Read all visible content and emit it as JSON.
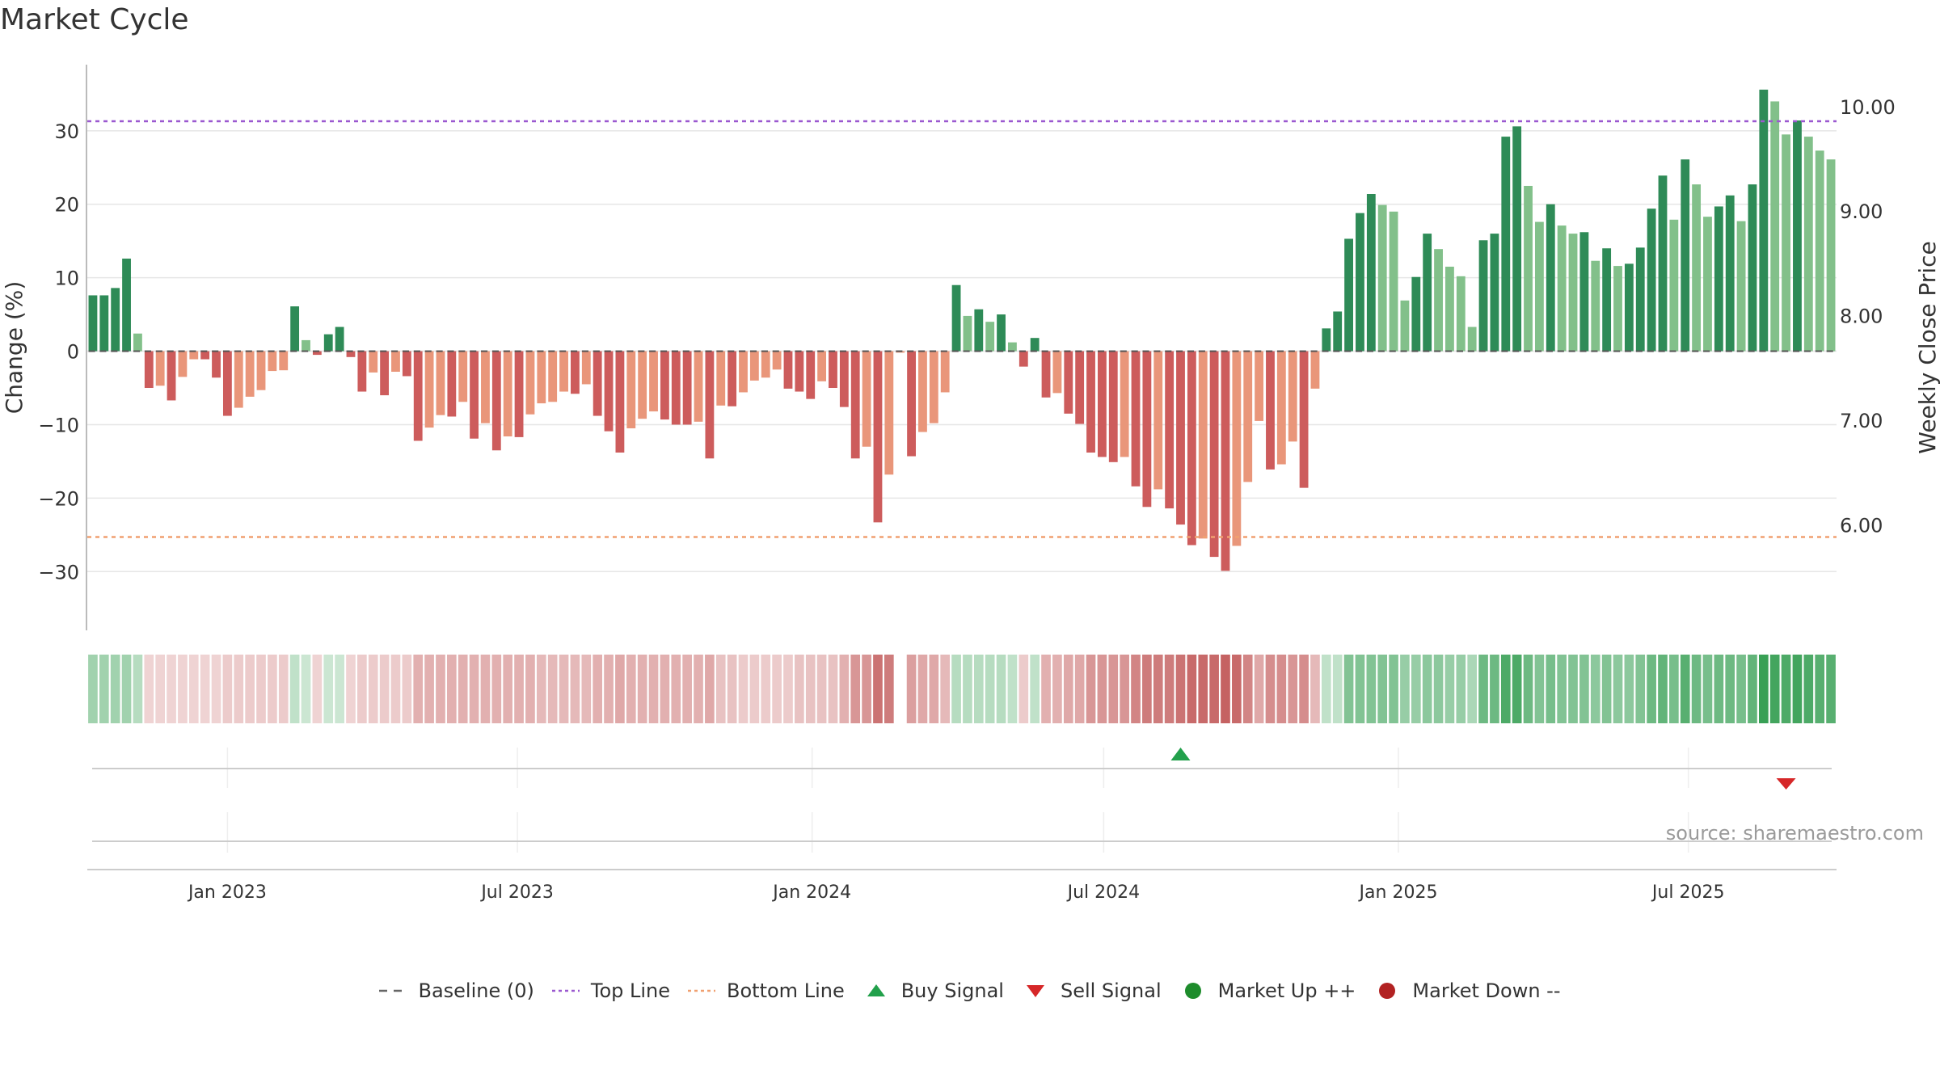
{
  "title": "Market Cycle",
  "source_note": "source: sharemaestro.com",
  "legend": [
    {
      "key": "baseline",
      "label": "Baseline (0)",
      "color": "#666666",
      "icon": "dashed-line"
    },
    {
      "key": "top",
      "label": "Top Line",
      "color": "#9b59d0",
      "icon": "dotted-line"
    },
    {
      "key": "bottom",
      "label": "Bottom Line",
      "color": "#f0a070",
      "icon": "dotted-line"
    },
    {
      "key": "buy",
      "label": "Buy Signal",
      "color": "#22a04b",
      "icon": "triangle-up-icon"
    },
    {
      "key": "sell",
      "label": "Sell Signal",
      "color": "#d62728",
      "icon": "triangle-down-icon"
    },
    {
      "key": "up",
      "label": "Market Up ++",
      "color": "#1e8c2c",
      "icon": "circle-icon"
    },
    {
      "key": "down",
      "label": "Market Down --",
      "color": "#b22222",
      "icon": "circle-icon"
    }
  ],
  "colors": {
    "up_strong": "#2e8b57",
    "up_weak": "#82c08a",
    "down_strong": "#cd5c5c",
    "down_weak": "#e9967a",
    "grid": "#e6e6e6",
    "axis": "#bbbbbb"
  },
  "chart_data": {
    "type": "bar",
    "ylabel": "Change (%)",
    "y2label": "Weekly Close Price",
    "ylim": [
      -38,
      39
    ],
    "y2lim": [
      4.99,
      10.4
    ],
    "yticks": [
      30,
      20,
      10,
      0,
      -10,
      -20,
      -30
    ],
    "ytick_labels": [
      "30",
      "20",
      "10",
      "0",
      "−10",
      "−20",
      "−30"
    ],
    "y2ticks": [
      10.0,
      9.0,
      8.0,
      7.0,
      6.0
    ],
    "y2tick_labels": [
      "10.00",
      "9.00",
      "8.00",
      "7.00",
      "6.00"
    ],
    "x_start": "2022-10-09",
    "xticks": [
      "2023-01-01",
      "2023-07-01",
      "2024-01-01",
      "2024-07-01",
      "2025-01-01",
      "2025-07-01"
    ],
    "xtick_labels": [
      "Jan 2023",
      "Jul 2023",
      "Jan 2024",
      "Jul 2024",
      "Jan 2025",
      "Jul 2025"
    ],
    "top_line": 31.3,
    "bottom_line": -25.3,
    "baseline": 0,
    "grid": true,
    "legend_position": "bottom",
    "values": [
      7.6,
      7.6,
      8.6,
      12.6,
      2.4,
      -5.0,
      -4.7,
      -6.7,
      -3.5,
      -1.1,
      -1.1,
      -3.6,
      -8.8,
      -7.7,
      -6.2,
      -5.3,
      -2.7,
      -2.6,
      6.1,
      1.5,
      -0.5,
      2.3,
      3.3,
      -0.8,
      -5.5,
      -2.9,
      -6.0,
      -2.8,
      -3.4,
      -12.2,
      -10.4,
      -8.7,
      -8.9,
      -6.9,
      -11.9,
      -9.8,
      -13.5,
      -11.6,
      -11.7,
      -8.6,
      -7.1,
      -6.9,
      -5.5,
      -5.8,
      -4.5,
      -8.8,
      -10.9,
      -13.8,
      -10.5,
      -9.2,
      -8.2,
      -9.3,
      -10.0,
      -10.0,
      -9.6,
      -14.6,
      -7.4,
      -7.5,
      -5.6,
      -4.0,
      -3.6,
      -2.5,
      -5.1,
      -5.5,
      -6.5,
      -4.1,
      -5.0,
      -7.6,
      -14.6,
      -13.0,
      -23.3,
      -16.8,
      -0.2,
      -14.3,
      -11.0,
      -9.8,
      -5.6,
      9.0,
      4.8,
      5.7,
      4.0,
      5.0,
      1.2,
      -2.1,
      1.8,
      -6.3,
      -5.7,
      -8.5,
      -9.9,
      -13.8,
      -14.4,
      -15.1,
      -14.4,
      -18.4,
      -21.2,
      -18.8,
      -21.4,
      -23.6,
      -26.4,
      -25.5,
      -28.0,
      -29.9,
      -26.5,
      -17.8,
      -9.5,
      -16.1,
      -15.4,
      -12.3,
      -18.6,
      -5.1,
      3.1,
      5.4,
      15.3,
      18.8,
      21.4,
      19.9,
      19.0,
      6.9,
      10.1,
      16.0,
      13.9,
      11.5,
      10.2,
      3.3,
      15.1,
      16.0,
      29.2,
      30.6,
      22.5,
      17.6,
      20.0,
      17.1,
      16.0,
      16.2,
      12.3,
      14.0,
      11.6,
      11.9,
      14.1,
      19.4,
      23.9,
      17.9,
      26.1,
      22.7,
      18.3,
      19.7,
      21.2,
      17.7,
      22.7,
      35.6,
      34.0,
      29.5,
      31.4,
      29.2,
      27.3,
      26.1
    ],
    "fade_intensity": [
      0.45,
      0.45,
      0.45,
      0.45,
      0.35,
      0.25,
      0.25,
      0.25,
      0.25,
      0.25,
      0.25,
      0.25,
      0.3,
      0.3,
      0.3,
      0.3,
      0.3,
      0.3,
      0.3,
      0.25,
      0.25,
      0.25,
      0.25,
      0.25,
      0.3,
      0.3,
      0.3,
      0.3,
      0.3,
      0.45,
      0.45,
      0.45,
      0.45,
      0.45,
      0.45,
      0.45,
      0.45,
      0.45,
      0.45,
      0.45,
      0.4,
      0.4,
      0.4,
      0.4,
      0.4,
      0.45,
      0.45,
      0.5,
      0.45,
      0.45,
      0.45,
      0.45,
      0.45,
      0.45,
      0.45,
      0.5,
      0.35,
      0.35,
      0.3,
      0.3,
      0.3,
      0.3,
      0.3,
      0.35,
      0.35,
      0.35,
      0.35,
      0.45,
      0.6,
      0.6,
      0.8,
      0.75,
      0.0,
      0.55,
      0.5,
      0.5,
      0.4,
      0.35,
      0.35,
      0.35,
      0.35,
      0.35,
      0.3,
      0.3,
      0.3,
      0.45,
      0.45,
      0.5,
      0.5,
      0.6,
      0.6,
      0.6,
      0.6,
      0.7,
      0.75,
      0.75,
      0.75,
      0.8,
      0.85,
      0.85,
      0.85,
      0.9,
      0.85,
      0.7,
      0.5,
      0.65,
      0.65,
      0.6,
      0.65,
      0.4,
      0.3,
      0.3,
      0.6,
      0.6,
      0.6,
      0.6,
      0.6,
      0.5,
      0.5,
      0.55,
      0.55,
      0.5,
      0.5,
      0.4,
      0.7,
      0.7,
      0.85,
      0.85,
      0.7,
      0.6,
      0.65,
      0.6,
      0.6,
      0.6,
      0.55,
      0.6,
      0.55,
      0.55,
      0.6,
      0.7,
      0.75,
      0.65,
      0.8,
      0.7,
      0.65,
      0.7,
      0.7,
      0.65,
      0.75,
      0.95,
      0.9,
      0.85,
      0.9,
      0.85,
      0.8,
      0.8
    ],
    "buy_signal_date": "2024-08-18",
    "sell_signal_date": "2025-08-31"
  }
}
